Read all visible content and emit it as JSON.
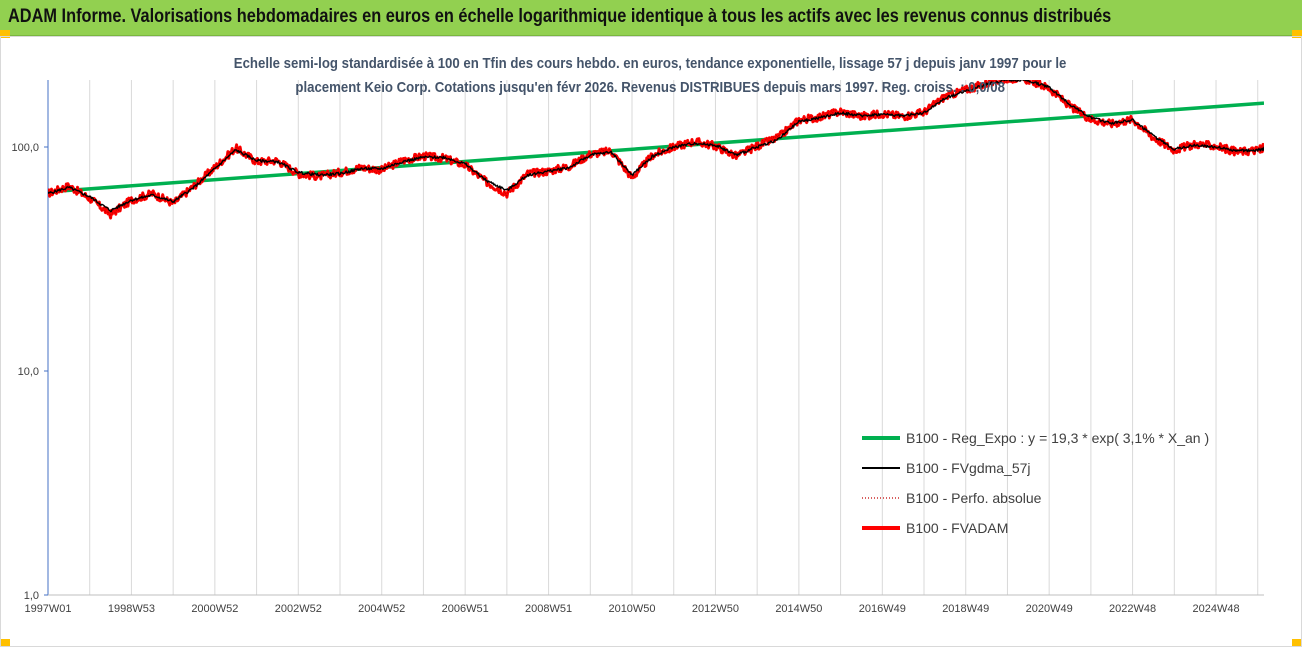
{
  "header": {
    "title": "ADAM Informe. Valorisations hebdomadaires en euros en échelle logarithmique identique à tous les actifs avec les revenus connus distribués"
  },
  "chart_data": {
    "type": "line",
    "title_line1": "Echelle semi-log standardisée à 100 en Tfin des cours hebdo. en euros, tendance exponentielle, lissage 57 j depuis janv 1997 pour le",
    "title_line2": "placement Keio Corp. Cotations jusqu'en févr 2026. Revenus DISTRIBUES depuis mars 1997.  Reg. croiss. : 0,0/08",
    "y_scale": "log",
    "ylim": [
      1,
      200
    ],
    "y_ticks": [
      {
        "value": 1,
        "label": "1,0"
      },
      {
        "value": 10,
        "label": "10,0"
      },
      {
        "value": 100,
        "label": "100,0"
      }
    ],
    "x_range": [
      1997.0,
      2026.15
    ],
    "x_tick_labels": [
      {
        "x": 1997.0,
        "label": "1997W01"
      },
      {
        "x": 1999.0,
        "label": "1998W53"
      },
      {
        "x": 2001.0,
        "label": "2000W52"
      },
      {
        "x": 2003.0,
        "label": "2002W52"
      },
      {
        "x": 2005.0,
        "label": "2004W52"
      },
      {
        "x": 2007.0,
        "label": "2006W51"
      },
      {
        "x": 2009.0,
        "label": "2008W51"
      },
      {
        "x": 2011.0,
        "label": "2010W50"
      },
      {
        "x": 2013.0,
        "label": "2012W50"
      },
      {
        "x": 2015.0,
        "label": "2014W50"
      },
      {
        "x": 2017.0,
        "label": "2016W49"
      },
      {
        "x": 2019.0,
        "label": "2018W49"
      },
      {
        "x": 2021.0,
        "label": "2020W49"
      },
      {
        "x": 2023.0,
        "label": "2022W48"
      },
      {
        "x": 2025.0,
        "label": "2024W48"
      }
    ],
    "grid_x_every_years": 1,
    "grid": true,
    "legend_position": "bottom-right",
    "series": [
      {
        "name": "B100 - Reg_Expo : y = 19,3 * exp( 3,1% *  X_an )",
        "color": "#00b050",
        "style": "solid-thick",
        "x": [
          1997.0,
          2026.15
        ],
        "values": [
          63,
          157
        ]
      },
      {
        "name": "B100 - FVgdma_57j",
        "color": "#000000",
        "style": "solid",
        "x": [
          1997.0,
          1997.5,
          1998.0,
          1998.5,
          1999.0,
          1999.5,
          2000.0,
          2000.5,
          2001.0,
          2001.5,
          2002.0,
          2002.5,
          2003.0,
          2003.5,
          2004.0,
          2004.5,
          2005.0,
          2005.5,
          2006.0,
          2006.5,
          2007.0,
          2007.5,
          2008.0,
          2008.5,
          2009.0,
          2009.5,
          2010.0,
          2010.5,
          2011.0,
          2011.5,
          2012.0,
          2012.5,
          2013.0,
          2013.5,
          2014.0,
          2014.5,
          2015.0,
          2015.5,
          2016.0,
          2016.5,
          2017.0,
          2017.5,
          2018.0,
          2018.5,
          2019.0,
          2019.5,
          2020.0,
          2020.5,
          2021.0,
          2021.5,
          2022.0,
          2022.5,
          2023.0,
          2023.5,
          2024.0,
          2024.5,
          2025.0,
          2025.5,
          2026.0,
          2026.15
        ],
        "values": [
          62,
          66,
          60,
          52,
          58,
          61,
          57,
          66,
          80,
          97,
          87,
          86,
          77,
          75,
          76,
          80,
          80,
          86,
          90,
          90,
          84,
          71,
          64,
          75,
          78,
          81,
          92,
          95,
          75,
          91,
          100,
          104,
          102,
          92,
          100,
          108,
          130,
          135,
          142,
          138,
          140,
          138,
          142,
          165,
          178,
          190,
          200,
          198,
          185,
          155,
          135,
          128,
          132,
          112,
          98,
          102,
          100,
          96,
          97,
          98
        ]
      },
      {
        "name": "B100 - Perfo. absolue",
        "color": "#c00000",
        "style": "dotted",
        "x": [
          1997.0,
          1997.5,
          1998.0,
          1998.5,
          1999.0,
          1999.5,
          2000.0,
          2000.5,
          2001.0,
          2001.5,
          2002.0,
          2002.5,
          2003.0,
          2003.5,
          2004.0,
          2004.5,
          2005.0,
          2005.5,
          2006.0,
          2006.5,
          2007.0,
          2007.5,
          2008.0,
          2008.5,
          2009.0,
          2009.5,
          2010.0,
          2010.5,
          2011.0,
          2011.5,
          2012.0,
          2012.5,
          2013.0,
          2013.5,
          2014.0,
          2014.5,
          2015.0,
          2015.5,
          2016.0,
          2016.5,
          2017.0,
          2017.5,
          2018.0,
          2018.5,
          2019.0,
          2019.5,
          2020.0,
          2020.5,
          2021.0,
          2021.5,
          2022.0,
          2022.5,
          2023.0,
          2023.5,
          2024.0,
          2024.5,
          2025.0,
          2025.5,
          2026.0,
          2026.15
        ],
        "values": [
          62,
          67,
          59,
          50,
          58,
          62,
          56,
          67,
          81,
          99,
          86,
          87,
          76,
          74,
          77,
          81,
          79,
          87,
          91,
          89,
          83,
          70,
          62,
          76,
          78,
          82,
          93,
          96,
          73,
          92,
          100,
          106,
          101,
          91,
          101,
          110,
          132,
          136,
          144,
          137,
          141,
          137,
          143,
          168,
          180,
          192,
          203,
          200,
          183,
          152,
          133,
          127,
          133,
          110,
          97,
          103,
          101,
          95,
          97,
          99
        ]
      },
      {
        "name": "B100 - FVADAM",
        "color": "#ff0000",
        "style": "solid-thick",
        "x": [
          1997.0,
          1997.5,
          1998.0,
          1998.5,
          1999.0,
          1999.5,
          2000.0,
          2000.5,
          2001.0,
          2001.5,
          2002.0,
          2002.5,
          2003.0,
          2003.5,
          2004.0,
          2004.5,
          2005.0,
          2005.5,
          2006.0,
          2006.5,
          2007.0,
          2007.5,
          2008.0,
          2008.5,
          2009.0,
          2009.5,
          2010.0,
          2010.5,
          2011.0,
          2011.5,
          2012.0,
          2012.5,
          2013.0,
          2013.5,
          2014.0,
          2014.5,
          2015.0,
          2015.5,
          2016.0,
          2016.5,
          2017.0,
          2017.5,
          2018.0,
          2018.5,
          2019.0,
          2019.5,
          2020.0,
          2020.5,
          2021.0,
          2021.5,
          2022.0,
          2022.5,
          2023.0,
          2023.5,
          2024.0,
          2024.5,
          2025.0,
          2025.5,
          2026.0,
          2026.15
        ],
        "values": [
          62,
          67,
          59,
          50,
          58,
          62,
          56,
          67,
          81,
          99,
          86,
          87,
          76,
          74,
          77,
          81,
          79,
          87,
          91,
          89,
          83,
          70,
          62,
          76,
          78,
          82,
          93,
          96,
          73,
          92,
          100,
          106,
          101,
          91,
          101,
          110,
          132,
          136,
          144,
          137,
          141,
          137,
          143,
          168,
          180,
          192,
          203,
          200,
          183,
          152,
          133,
          127,
          133,
          110,
          97,
          103,
          101,
          95,
          97,
          99
        ]
      }
    ]
  }
}
